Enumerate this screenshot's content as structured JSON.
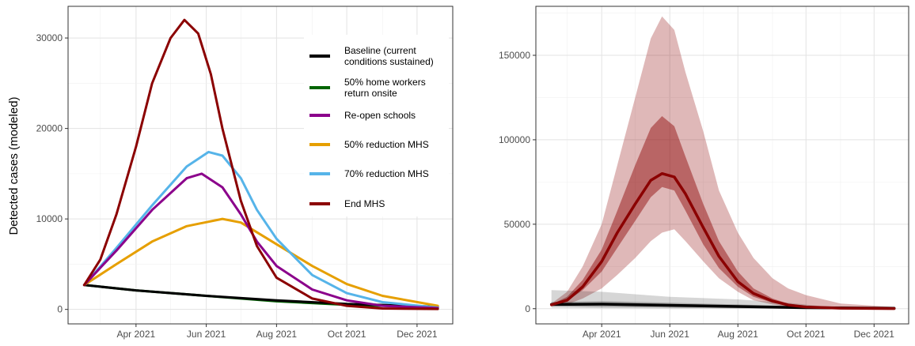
{
  "chart_data": [
    {
      "type": "line",
      "title": "",
      "xlabel": "",
      "ylabel": "Detected cases (modeled)",
      "x_tick_labels": [
        "Apr 2021",
        "Jun 2021",
        "Aug 2021",
        "Oct 2021",
        "Dec 2021"
      ],
      "y_ticks": [
        0,
        10000,
        20000,
        30000
      ],
      "x_range": [
        "2021-02-01",
        "2022-01-01"
      ],
      "ylim": [
        -1600,
        33500
      ],
      "grid": true,
      "legend_position": "top-right",
      "series": [
        {
          "name": "Baseline (current conditions sustained)",
          "color": "#000000",
          "points": [
            [
              "2021-02-15",
              2700
            ],
            [
              "2021-04-01",
              2100
            ],
            [
              "2021-06-01",
              1500
            ],
            [
              "2021-08-01",
              1000
            ],
            [
              "2021-10-01",
              600
            ],
            [
              "2021-12-19",
              300
            ]
          ]
        },
        {
          "name": "50% home workers return onsite",
          "color": "#006400",
          "points": [
            [
              "2021-02-15",
              2700
            ],
            [
              "2021-04-01",
              2100
            ],
            [
              "2021-06-01",
              1500
            ],
            [
              "2021-08-01",
              900
            ],
            [
              "2021-10-01",
              500
            ],
            [
              "2021-12-19",
              250
            ]
          ]
        },
        {
          "name": "Re-open schools",
          "color": "#8B008B",
          "points": [
            [
              "2021-02-15",
              2700
            ],
            [
              "2021-03-15",
              6500
            ],
            [
              "2021-04-15",
              11000
            ],
            [
              "2021-05-15",
              14500
            ],
            [
              "2021-05-28",
              15000
            ],
            [
              "2021-06-15",
              13500
            ],
            [
              "2021-07-01",
              10500
            ],
            [
              "2021-07-15",
              7500
            ],
            [
              "2021-08-01",
              4800
            ],
            [
              "2021-09-01",
              2200
            ],
            [
              "2021-10-01",
              1000
            ],
            [
              "2021-11-01",
              400
            ],
            [
              "2021-12-19",
              150
            ]
          ]
        },
        {
          "name": "50% reduction MHS",
          "color": "#E69F00",
          "points": [
            [
              "2021-02-15",
              2700
            ],
            [
              "2021-03-15",
              5000
            ],
            [
              "2021-04-15",
              7500
            ],
            [
              "2021-05-15",
              9200
            ],
            [
              "2021-06-15",
              10000
            ],
            [
              "2021-07-01",
              9600
            ],
            [
              "2021-08-01",
              7200
            ],
            [
              "2021-09-01",
              4800
            ],
            [
              "2021-10-01",
              2800
            ],
            [
              "2021-11-01",
              1500
            ],
            [
              "2021-12-19",
              400
            ]
          ]
        },
        {
          "name": "70% reduction MHS",
          "color": "#56B4E9",
          "points": [
            [
              "2021-02-15",
              2700
            ],
            [
              "2021-03-15",
              6800
            ],
            [
              "2021-04-15",
              11500
            ],
            [
              "2021-05-15",
              15800
            ],
            [
              "2021-06-03",
              17400
            ],
            [
              "2021-06-15",
              17000
            ],
            [
              "2021-07-01",
              14500
            ],
            [
              "2021-07-15",
              11000
            ],
            [
              "2021-08-01",
              7800
            ],
            [
              "2021-09-01",
              3800
            ],
            [
              "2021-10-01",
              1800
            ],
            [
              "2021-11-01",
              800
            ],
            [
              "2021-12-19",
              200
            ]
          ]
        },
        {
          "name": "End MHS",
          "color": "#8B0000",
          "points": [
            [
              "2021-02-15",
              2700
            ],
            [
              "2021-03-01",
              5500
            ],
            [
              "2021-03-15",
              10500
            ],
            [
              "2021-04-01",
              18000
            ],
            [
              "2021-04-15",
              25000
            ],
            [
              "2021-05-01",
              30000
            ],
            [
              "2021-05-13",
              32000
            ],
            [
              "2021-05-25",
              30500
            ],
            [
              "2021-06-05",
              26000
            ],
            [
              "2021-06-15",
              20000
            ],
            [
              "2021-07-01",
              12000
            ],
            [
              "2021-07-15",
              7000
            ],
            [
              "2021-08-01",
              3500
            ],
            [
              "2021-09-01",
              1200
            ],
            [
              "2021-10-01",
              400
            ],
            [
              "2021-11-01",
              100
            ],
            [
              "2021-12-19",
              50
            ]
          ]
        }
      ]
    },
    {
      "type": "area",
      "title": "",
      "xlabel": "",
      "ylabel": "",
      "x_tick_labels": [
        "Apr 2021",
        "Jun 2021",
        "Aug 2021",
        "Oct 2021",
        "Dec 2021"
      ],
      "y_ticks": [
        0,
        50000,
        100000,
        150000
      ],
      "x_range": [
        "2021-02-01",
        "2022-01-01"
      ],
      "ylim": [
        -9000,
        179000
      ],
      "grid": true,
      "series": [
        {
          "color": "#8B0000",
          "role": "outer_band",
          "x": [
            "2021-02-15",
            "2021-03-01",
            "2021-03-15",
            "2021-04-01",
            "2021-04-15",
            "2021-05-01",
            "2021-05-15",
            "2021-05-25",
            "2021-06-05",
            "2021-06-15",
            "2021-07-01",
            "2021-07-15",
            "2021-08-01",
            "2021-08-15",
            "2021-09-01",
            "2021-09-15",
            "2021-10-01",
            "2021-11-01",
            "2021-12-19"
          ],
          "upper": [
            3000,
            10000,
            25000,
            50000,
            85000,
            125000,
            160000,
            173000,
            165000,
            140000,
            105000,
            70000,
            45000,
            30000,
            18000,
            12000,
            8000,
            3000,
            1000
          ],
          "lower": [
            1500,
            2500,
            6000,
            12000,
            20000,
            30000,
            40000,
            45000,
            47000,
            40000,
            28000,
            18000,
            10000,
            5000,
            2500,
            1200,
            600,
            200,
            50
          ]
        },
        {
          "color": "#8B0000",
          "role": "inner_band",
          "x": [
            "2021-02-15",
            "2021-03-01",
            "2021-03-15",
            "2021-04-01",
            "2021-04-15",
            "2021-05-01",
            "2021-05-15",
            "2021-05-25",
            "2021-06-05",
            "2021-06-15",
            "2021-07-01",
            "2021-07-15",
            "2021-08-01",
            "2021-08-15",
            "2021-09-01",
            "2021-09-15",
            "2021-10-01",
            "2021-11-01",
            "2021-12-19"
          ],
          "upper": [
            2500,
            7000,
            17000,
            35000,
            58000,
            85000,
            107000,
            114000,
            108000,
            90000,
            62000,
            40000,
            22000,
            12000,
            6000,
            3000,
            1500,
            500,
            100
          ],
          "lower": [
            2000,
            4500,
            11000,
            22000,
            36000,
            52000,
            66000,
            72000,
            70000,
            58000,
            38000,
            24000,
            13000,
            7000,
            3500,
            1800,
            900,
            300,
            50
          ]
        },
        {
          "color": "#000000",
          "role": "baseline_band",
          "x": [
            "2021-02-15",
            "2021-04-01",
            "2021-06-01",
            "2021-08-01",
            "2021-09-15",
            "2021-10-15",
            "2021-12-19"
          ],
          "upper": [
            11000,
            10000,
            7000,
            5500,
            3500,
            1500,
            500
          ],
          "lower": [
            600,
            300,
            150,
            80,
            50,
            30,
            20
          ]
        },
        {
          "color": "#000000",
          "role": "baseline_inner",
          "x": [
            "2021-02-15",
            "2021-04-01",
            "2021-06-01",
            "2021-08-01",
            "2021-10-01",
            "2021-12-19"
          ],
          "upper": [
            4000,
            4500,
            3500,
            2500,
            1200,
            300
          ],
          "lower": [
            1500,
            1000,
            600,
            300,
            100,
            30
          ]
        },
        {
          "color": "#000000",
          "role": "baseline_median",
          "points": [
            [
              "2021-02-15",
              2500
            ],
            [
              "2021-04-01",
              2700
            ],
            [
              "2021-06-01",
              2000
            ],
            [
              "2021-08-01",
              1300
            ],
            [
              "2021-10-01",
              600
            ],
            [
              "2021-12-19",
              200
            ]
          ]
        },
        {
          "color": "#8B0000",
          "role": "median",
          "points": [
            [
              "2021-02-15",
              2300
            ],
            [
              "2021-03-01",
              5000
            ],
            [
              "2021-03-15",
              13000
            ],
            [
              "2021-04-01",
              28000
            ],
            [
              "2021-04-15",
              45000
            ],
            [
              "2021-05-01",
              62000
            ],
            [
              "2021-05-15",
              76000
            ],
            [
              "2021-05-25",
              80000
            ],
            [
              "2021-06-05",
              78000
            ],
            [
              "2021-06-15",
              68000
            ],
            [
              "2021-07-01",
              48000
            ],
            [
              "2021-07-15",
              31000
            ],
            [
              "2021-08-01",
              16000
            ],
            [
              "2021-08-15",
              9000
            ],
            [
              "2021-09-01",
              4500
            ],
            [
              "2021-09-15",
              2200
            ],
            [
              "2021-10-01",
              1000
            ],
            [
              "2021-11-01",
              300
            ],
            [
              "2021-12-19",
              80
            ]
          ]
        }
      ]
    }
  ]
}
